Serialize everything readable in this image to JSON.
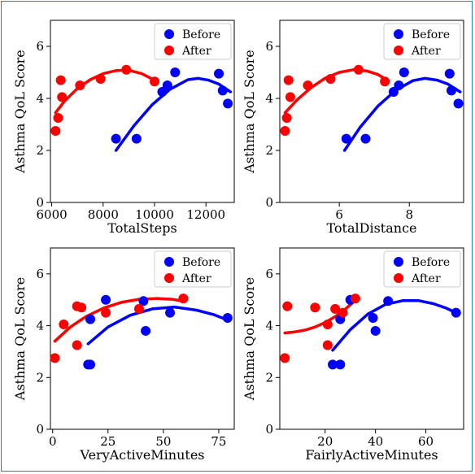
{
  "colors": {
    "before": "#0000ff",
    "after": "#ff0000"
  },
  "chart_data": [
    {
      "type": "scatter",
      "xlabel": "TotalSteps",
      "ylabel": "Asthma QoL Score",
      "xlim": [
        5950,
        13100
      ],
      "ylim": [
        0,
        7
      ],
      "xticks": [
        6000,
        8000,
        10000,
        12000
      ],
      "yticks": [
        0,
        2,
        4,
        6
      ],
      "legend": "top-right",
      "series": [
        {
          "name": "Before",
          "color": "#0000ff",
          "points": [
            [
              8500,
              2.45
            ],
            [
              9300,
              2.45
            ],
            [
              10300,
              4.25
            ],
            [
              10500,
              4.5
            ],
            [
              10800,
              5.0
            ],
            [
              12500,
              4.95
            ],
            [
              12650,
              4.3
            ],
            [
              12850,
              3.8
            ]
          ],
          "fit": [
            [
              8500,
              2.0
            ],
            [
              9200,
              2.95
            ],
            [
              9900,
              3.75
            ],
            [
              10600,
              4.35
            ],
            [
              11300,
              4.72
            ],
            [
              11700,
              4.77
            ],
            [
              12100,
              4.7
            ],
            [
              12500,
              4.55
            ],
            [
              12950,
              4.25
            ]
          ]
        },
        {
          "name": "After",
          "color": "#ff0000",
          "points": [
            [
              6150,
              2.75
            ],
            [
              6250,
              3.25
            ],
            [
              6350,
              4.7
            ],
            [
              6400,
              4.05
            ],
            [
              7100,
              4.5
            ],
            [
              7900,
              4.75
            ],
            [
              8900,
              5.1
            ],
            [
              10000,
              4.65
            ]
          ],
          "fit": [
            [
              6150,
              3.45
            ],
            [
              6500,
              3.9
            ],
            [
              7000,
              4.38
            ],
            [
              7500,
              4.72
            ],
            [
              8000,
              4.95
            ],
            [
              8500,
              5.07
            ],
            [
              9000,
              5.08
            ],
            [
              9500,
              4.95
            ],
            [
              10000,
              4.7
            ]
          ]
        }
      ]
    },
    {
      "type": "scatter",
      "xlabel": "TotalDistance",
      "ylabel": "Asthma QoL Score",
      "xlim": [
        4.3,
        9.55
      ],
      "ylim": [
        0,
        7
      ],
      "xticks": [
        6,
        8
      ],
      "yticks": [
        0,
        2,
        4,
        6
      ],
      "legend": "top-right",
      "series": [
        {
          "name": "Before",
          "color": "#0000ff",
          "points": [
            [
              6.2,
              2.45
            ],
            [
              6.75,
              2.45
            ],
            [
              7.55,
              4.25
            ],
            [
              7.7,
              4.5
            ],
            [
              7.85,
              5.0
            ],
            [
              9.15,
              4.95
            ],
            [
              9.2,
              4.3
            ],
            [
              9.4,
              3.8
            ]
          ],
          "fit": [
            [
              6.15,
              2.0
            ],
            [
              6.6,
              2.9
            ],
            [
              7.1,
              3.7
            ],
            [
              7.6,
              4.3
            ],
            [
              8.1,
              4.68
            ],
            [
              8.45,
              4.77
            ],
            [
              8.8,
              4.7
            ],
            [
              9.1,
              4.55
            ],
            [
              9.45,
              4.25
            ]
          ]
        },
        {
          "name": "After",
          "color": "#ff0000",
          "points": [
            [
              4.45,
              2.75
            ],
            [
              4.5,
              3.25
            ],
            [
              4.55,
              4.7
            ],
            [
              4.6,
              4.05
            ],
            [
              5.1,
              4.5
            ],
            [
              5.75,
              4.75
            ],
            [
              6.55,
              5.1
            ],
            [
              7.3,
              4.65
            ]
          ],
          "fit": [
            [
              4.45,
              3.45
            ],
            [
              4.8,
              3.95
            ],
            [
              5.2,
              4.42
            ],
            [
              5.6,
              4.78
            ],
            [
              6.0,
              5.0
            ],
            [
              6.4,
              5.1
            ],
            [
              6.8,
              5.05
            ],
            [
              7.1,
              4.92
            ],
            [
              7.35,
              4.72
            ]
          ]
        }
      ]
    },
    {
      "type": "scatter",
      "xlabel": "VeryActiveMinutes",
      "ylabel": "Asthma QoL Score",
      "xlim": [
        -1,
        82
      ],
      "ylim": [
        0,
        7
      ],
      "xticks": [
        0,
        25,
        50,
        75
      ],
      "yticks": [
        0,
        2,
        4,
        6
      ],
      "legend": "top-right",
      "series": [
        {
          "name": "Before",
          "color": "#0000ff",
          "points": [
            [
              16,
              2.5
            ],
            [
              17,
              2.5
            ],
            [
              17,
              4.25
            ],
            [
              24,
              5.0
            ],
            [
              41,
              4.95
            ],
            [
              42,
              3.8
            ],
            [
              53,
              4.5
            ],
            [
              79,
              4.3
            ]
          ],
          "fit": [
            [
              16,
              3.3
            ],
            [
              25,
              3.95
            ],
            [
              35,
              4.4
            ],
            [
              45,
              4.65
            ],
            [
              55,
              4.72
            ],
            [
              65,
              4.6
            ],
            [
              73,
              4.42
            ],
            [
              79,
              4.22
            ]
          ]
        },
        {
          "name": "After",
          "color": "#ff0000",
          "points": [
            [
              1,
              2.75
            ],
            [
              5,
              4.05
            ],
            [
              11,
              4.75
            ],
            [
              11,
              3.25
            ],
            [
              13,
              4.7
            ],
            [
              24,
              4.5
            ],
            [
              39,
              4.65
            ],
            [
              59,
              5.05
            ]
          ],
          "fit": [
            [
              1,
              3.4
            ],
            [
              8,
              3.95
            ],
            [
              15,
              4.35
            ],
            [
              23,
              4.68
            ],
            [
              31,
              4.9
            ],
            [
              39,
              5.02
            ],
            [
              47,
              5.05
            ],
            [
              54,
              5.02
            ],
            [
              59,
              4.95
            ]
          ]
        }
      ]
    },
    {
      "type": "scatter",
      "xlabel": "FairlyActiveMinutes",
      "ylabel": "Asthma QoL Score",
      "xlim": [
        2,
        75
      ],
      "ylim": [
        0,
        7
      ],
      "xticks": [
        20,
        40,
        60
      ],
      "yticks": [
        0,
        2,
        4,
        6
      ],
      "legend": "top-right",
      "series": [
        {
          "name": "Before",
          "color": "#0000ff",
          "points": [
            [
              23,
              2.5
            ],
            [
              26,
              2.5
            ],
            [
              26,
              4.25
            ],
            [
              30,
              5.0
            ],
            [
              39,
              4.3
            ],
            [
              40,
              3.8
            ],
            [
              45,
              4.95
            ],
            [
              72,
              4.5
            ]
          ],
          "fit": [
            [
              23,
              3.05
            ],
            [
              30,
              3.85
            ],
            [
              37,
              4.45
            ],
            [
              44,
              4.82
            ],
            [
              51,
              4.97
            ],
            [
              57,
              4.97
            ],
            [
              63,
              4.85
            ],
            [
              68,
              4.68
            ],
            [
              72,
              4.5
            ]
          ]
        },
        {
          "name": "After",
          "color": "#ff0000",
          "points": [
            [
              4,
              2.75
            ],
            [
              5,
              4.75
            ],
            [
              16,
              4.7
            ],
            [
              21,
              3.25
            ],
            [
              21,
              4.05
            ],
            [
              24,
              4.65
            ],
            [
              27,
              4.5
            ],
            [
              32,
              5.05
            ]
          ],
          "fit": [
            [
              4,
              3.72
            ],
            [
              8,
              3.76
            ],
            [
              12,
              3.83
            ],
            [
              16,
              3.95
            ],
            [
              20,
              4.12
            ],
            [
              24,
              4.35
            ],
            [
              28,
              4.64
            ],
            [
              32,
              4.98
            ]
          ]
        }
      ]
    }
  ]
}
